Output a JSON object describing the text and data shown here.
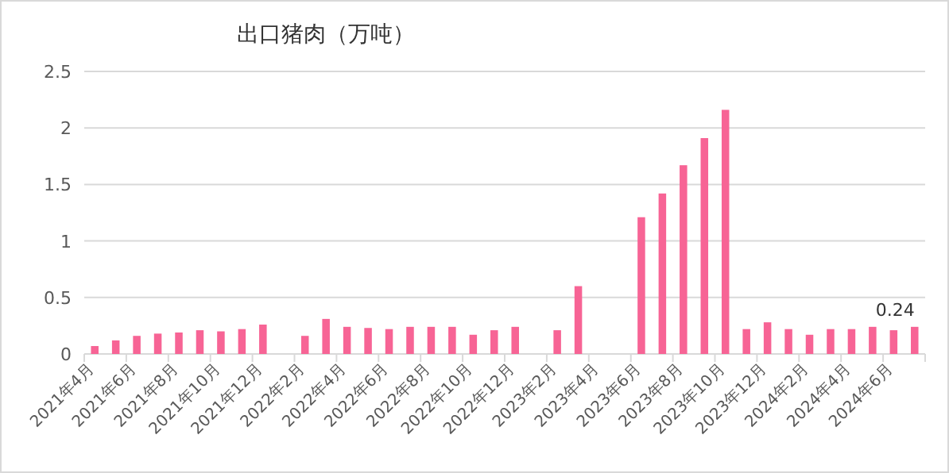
{
  "chart_data": {
    "type": "bar",
    "title": "出口猪肉（万吨）",
    "categories": [
      "2021年4月",
      null,
      "2021年6月",
      null,
      "2021年8月",
      null,
      "2021年10月",
      null,
      "2021年12月",
      null,
      "2022年2月",
      null,
      "2022年4月",
      null,
      "2022年6月",
      null,
      "2022年8月",
      null,
      "2022年10月",
      null,
      "2022年12月",
      null,
      "2023年2月",
      null,
      "2023年4月",
      null,
      "2023年6月",
      null,
      "2023年8月",
      null,
      "2023年10月",
      null,
      "2023年12月",
      null,
      "2024年2月",
      null,
      "2024年4月",
      null,
      "2024年6月",
      null
    ],
    "values": [
      0.07,
      0.12,
      0.16,
      0.18,
      0.19,
      0.21,
      0.2,
      0.22,
      0.26,
      null,
      0.16,
      0.31,
      0.24,
      0.23,
      0.22,
      0.24,
      0.24,
      0.24,
      0.17,
      0.21,
      0.24,
      null,
      0.21,
      0.6,
      null,
      null,
      1.21,
      1.42,
      1.67,
      1.91,
      2.16,
      0.22,
      0.28,
      0.22,
      0.17,
      0.22,
      0.22,
      0.24,
      0.21,
      0.24
    ],
    "value_labels": [
      null,
      null,
      null,
      null,
      null,
      null,
      null,
      null,
      null,
      null,
      null,
      null,
      null,
      null,
      null,
      null,
      null,
      null,
      null,
      null,
      null,
      null,
      null,
      null,
      null,
      null,
      null,
      null,
      null,
      null,
      null,
      null,
      null,
      null,
      null,
      null,
      null,
      null,
      null,
      "0.24"
    ],
    "color": "#f76495",
    "ylim": [
      0,
      2.5
    ],
    "yticks": [
      0,
      0.5,
      1,
      1.5,
      2,
      2.5
    ],
    "grid": "y"
  }
}
